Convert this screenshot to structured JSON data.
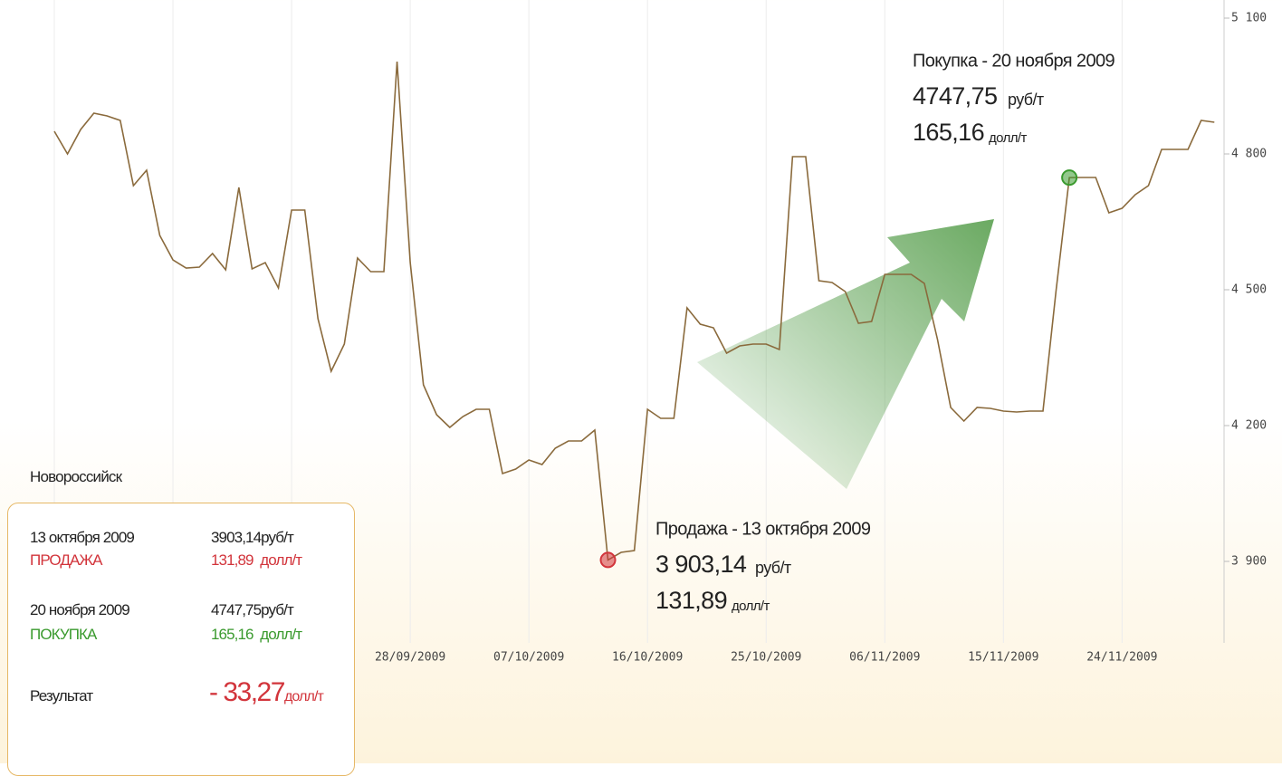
{
  "chart_data": {
    "type": "line",
    "color": "#8a6a3c",
    "categories": [
      null,
      null,
      null,
      null,
      null,
      null,
      null,
      null,
      null,
      null,
      null,
      null,
      null,
      null,
      null,
      null,
      null,
      null,
      null,
      null,
      null,
      null,
      null,
      null,
      null,
      null,
      null,
      "28/09/2009",
      null,
      null,
      null,
      null,
      null,
      null,
      null,
      null,
      "07/10/2009",
      null,
      null,
      null,
      null,
      null,
      null,
      null,
      null,
      "16/10/2009",
      null,
      null,
      null,
      null,
      null,
      null,
      null,
      null,
      "25/10/2009",
      null,
      null,
      null,
      null,
      null,
      null,
      null,
      null,
      "06/11/2009",
      null,
      null,
      null,
      null,
      null,
      null,
      null,
      null,
      "15/11/2009",
      null,
      null,
      null,
      null,
      null,
      null,
      null,
      null,
      "24/11/2009",
      null,
      null,
      null,
      null,
      null,
      null,
      null
    ],
    "values": [
      4850,
      4800,
      4854,
      4890,
      4884,
      4874,
      4730,
      4764,
      4620,
      4566,
      4548,
      4550,
      4580,
      4544,
      4726,
      4546,
      4560,
      4504,
      4676,
      4676,
      4436,
      4320,
      4380,
      4570,
      4540,
      4540,
      5004,
      4560,
      4290,
      4224,
      4196,
      4220,
      4236,
      4236,
      4094,
      4104,
      4124,
      4114,
      4150,
      4166,
      4166,
      4190,
      3903.14,
      3920,
      3924,
      4236,
      4216,
      4216,
      4460,
      4424,
      4416,
      4360,
      4376,
      4380,
      4380,
      4368,
      4794,
      4794,
      4520,
      4516,
      4496,
      4426,
      4430,
      4534,
      4534,
      4534,
      4514,
      4390,
      4240,
      4210,
      4240,
      4238,
      4232,
      4230,
      4232,
      4232,
      4500,
      4747.75,
      4748,
      4748,
      4670,
      4680,
      4710,
      4730,
      4810,
      4810,
      4810,
      4874,
      4870
    ],
    "ylim": [
      3720,
      5140
    ],
    "yticks": [
      {
        "value": 3900,
        "label": "3 900"
      },
      {
        "value": 4200,
        "label": "4 200"
      },
      {
        "value": 4500,
        "label": "4 500"
      },
      {
        "value": 4800,
        "label": "4 800"
      },
      {
        "value": 5100,
        "label": "5 100"
      }
    ],
    "grid": true,
    "sell": {
      "color": "#d2343b",
      "title": "Продажа - 13 октября 2009",
      "price": "3 903,14",
      "price_unit": "руб/т",
      "usd": "131,89",
      "usd_unit": "долл/т"
    },
    "buy": {
      "color": "#3a9a2e",
      "title": "Покупка - 20 ноября 2009",
      "price": "4747,75",
      "price_unit": "руб/т",
      "usd": "165,16",
      "usd_unit": "долл/т"
    }
  },
  "panel": {
    "city": "Новороссийск",
    "rows": [
      {
        "date": "13 октября 2009",
        "price": "3903,14руб/т",
        "action": "ПРОДАЖА",
        "usd": "131,89  долл/т"
      },
      {
        "date": "20 ноября 2009",
        "price": "4747,75руб/т",
        "action": "ПОКУПКА",
        "usd": "165,16  долл/т"
      }
    ],
    "result_label": "Результат",
    "result_value": "- 33,27",
    "result_unit": "долл/т"
  }
}
